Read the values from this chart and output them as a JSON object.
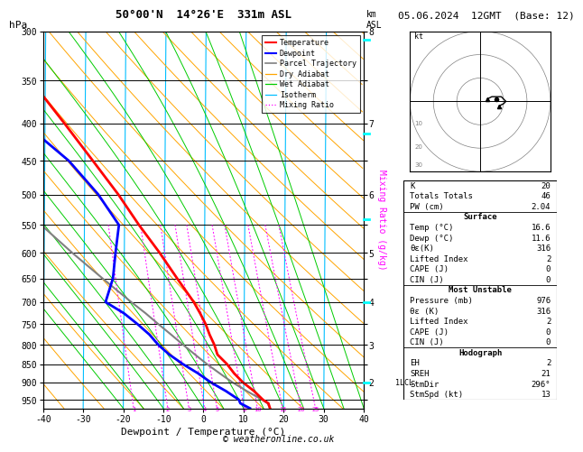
{
  "title_left": "50°00'N  14°26'E  331m ASL",
  "title_right": "05.06.2024  12GMT  (Base: 12)",
  "xlabel": "Dewpoint / Temperature (°C)",
  "ylabel_left": "hPa",
  "ylabel_right_mix": "Mixing Ratio (g/kg)",
  "background_color": "#ffffff",
  "isotherm_color": "#00bfff",
  "dry_adiabat_color": "#ffa500",
  "wet_adiabat_color": "#00cc00",
  "mixing_ratio_color": "#ff00ff",
  "temp_profile_color": "#ff0000",
  "dewp_profile_color": "#0000ff",
  "parcel_color": "#808080",
  "pressure_hpa": [
    976,
    961,
    950,
    925,
    900,
    875,
    850,
    825,
    800,
    775,
    750,
    725,
    700,
    650,
    600,
    550,
    500,
    450,
    400,
    350,
    300
  ],
  "temperature_c": [
    16.6,
    16.2,
    14.8,
    12.6,
    9.8,
    7.6,
    5.8,
    3.4,
    2.6,
    1.4,
    0.4,
    -1.0,
    -2.6,
    -6.8,
    -11.2,
    -16.4,
    -21.6,
    -28.0,
    -35.2,
    -43.6,
    -53.0
  ],
  "dewpoint_c": [
    11.6,
    9.2,
    8.8,
    5.6,
    1.8,
    -1.4,
    -5.2,
    -8.6,
    -11.4,
    -13.6,
    -16.6,
    -20.0,
    -24.6,
    -22.8,
    -22.2,
    -21.4,
    -26.6,
    -34.0,
    -45.2,
    -56.6,
    -65.0
  ],
  "parcel_c": [
    16.6,
    16.0,
    14.6,
    10.8,
    7.2,
    4.0,
    0.8,
    -2.2,
    -5.2,
    -8.2,
    -11.4,
    -14.6,
    -18.2,
    -25.4,
    -33.0,
    -40.8,
    -49.6,
    -57.6,
    -67.0,
    -76.0,
    -85.0
  ],
  "mixing_ratio_values": [
    1,
    2,
    3,
    4,
    5,
    8,
    10,
    15,
    20,
    25
  ],
  "p_ticks": [
    300,
    350,
    400,
    450,
    500,
    550,
    600,
    650,
    700,
    750,
    800,
    850,
    900,
    950
  ],
  "km_vals": {
    "300": "8",
    "400": "7",
    "500": "6",
    "600": "5",
    "700": "4",
    "800": "3",
    "900": "2"
  },
  "lcl_pressure": 900,
  "lcl_label": "1LCL",
  "temp_xlim": [
    -40,
    40
  ],
  "skew_factor": 0.55,
  "p_min": 300,
  "p_max": 976,
  "stats": {
    "K": 20,
    "Totals_Totals": 46,
    "PW_cm": 2.04,
    "Surface_Temp": 16.6,
    "Surface_Dewp": 11.6,
    "Surface_theta_e": 316,
    "Lifted_Index": 2,
    "CAPE": 0,
    "CIN": 0,
    "MU_Pressure": 976,
    "MU_theta_e": 316,
    "MU_Lifted_Index": 2,
    "MU_CAPE": 0,
    "MU_CIN": 0,
    "EH": 2,
    "SREH": 21,
    "StmDir": 296,
    "StmSpd": 13
  },
  "copyright": "© weatheronline.co.uk",
  "hodo_u": [
    3,
    5,
    7,
    8,
    9,
    10,
    11,
    10,
    8
  ],
  "hodo_v": [
    1,
    2,
    2,
    2,
    2,
    1,
    0,
    -1,
    -2
  ]
}
